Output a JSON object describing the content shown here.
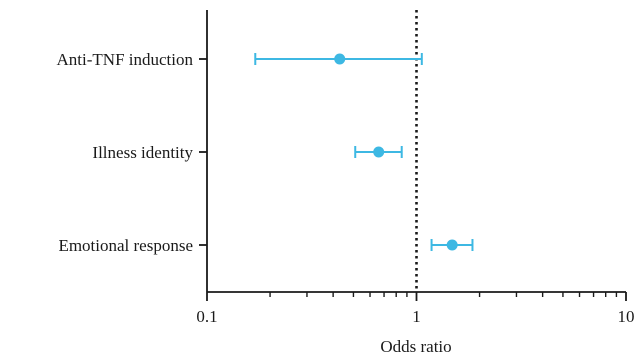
{
  "chart_data": {
    "type": "scatter",
    "subtype": "forest-plot",
    "xlabel": "Odds ratio",
    "x_scale": "log",
    "xlim": [
      0.1,
      10
    ],
    "x_ticks": [
      {
        "value": 0.1,
        "label": "0.1"
      },
      {
        "value": 1,
        "label": "1"
      },
      {
        "value": 10,
        "label": "10"
      }
    ],
    "reference_line": {
      "x": 1,
      "style": "dotted"
    },
    "grid": false,
    "marker_color": "#3DB8E3",
    "rows": [
      {
        "label": "Anti-TNF induction",
        "estimate": 0.43,
        "ci_low": 0.17,
        "ci_high": 1.06
      },
      {
        "label": "Illness identity",
        "estimate": 0.66,
        "ci_low": 0.51,
        "ci_high": 0.85
      },
      {
        "label": "Emotional response",
        "estimate": 1.48,
        "ci_low": 1.18,
        "ci_high": 1.85
      }
    ]
  }
}
